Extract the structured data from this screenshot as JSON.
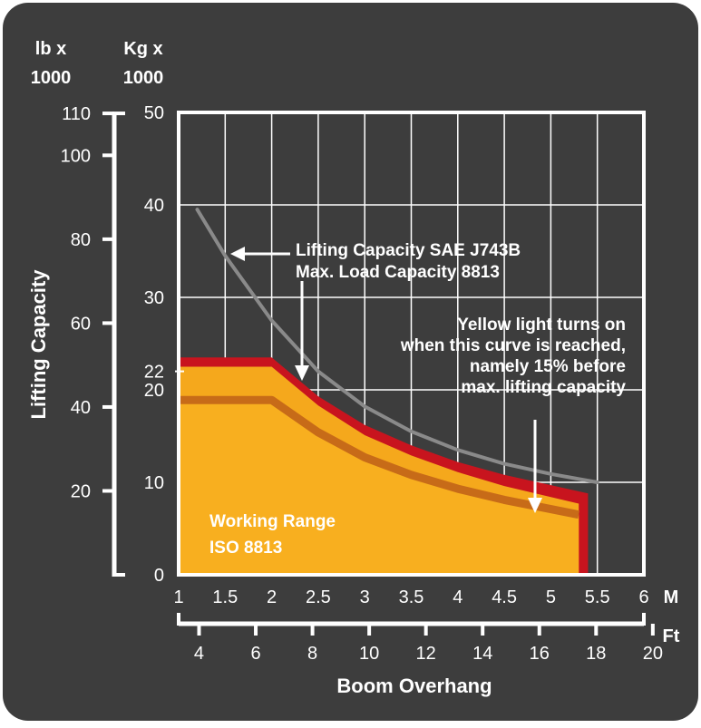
{
  "chart_data": {
    "type": "area",
    "units": {
      "lb_header": [
        "lb x",
        "1000"
      ],
      "kg_header": [
        "Kg x",
        "1000"
      ],
      "m_unit": "M",
      "ft_unit": "Ft"
    },
    "ylabel": "Lifting Capacity",
    "xlabel": "Boom Overhang",
    "y_kg_ticks": [
      "0",
      "10",
      "20",
      "22",
      "30",
      "40",
      "50"
    ],
    "y_lb_ticks": [
      "20",
      "40",
      "60",
      "80",
      "100",
      "110"
    ],
    "x_m_ticks": [
      "1",
      "1.5",
      "2",
      "2.5",
      "3",
      "3.5",
      "4",
      "4.5",
      "5",
      "5.5",
      "6"
    ],
    "x_ft_ticks": [
      "4",
      "6",
      "8",
      "10",
      "12",
      "14",
      "16",
      "18",
      "20"
    ],
    "xlim_m": [
      1,
      6
    ],
    "ylim_kg": [
      0,
      50
    ],
    "grid": true,
    "series": [
      {
        "name": "Lifting Capacity SAE J743B",
        "color": "#8a8a8a",
        "x": [
          1.2,
          1.5,
          2.0,
          2.5,
          3.0,
          3.5,
          4.0,
          4.5,
          5.0,
          5.5
        ],
        "y": [
          39.5,
          34.5,
          27.5,
          22.0,
          18.2,
          15.5,
          13.5,
          12.0,
          10.9,
          10.0
        ]
      },
      {
        "name": "Max. Load Capacity 8813",
        "color": "#c8141e",
        "x": [
          1.0,
          2.0,
          2.5,
          3.0,
          3.5,
          4.0,
          4.5,
          5.0,
          5.4
        ],
        "y": [
          23.5,
          23.5,
          19.3,
          16.2,
          14.0,
          12.2,
          10.8,
          9.7,
          8.8
        ]
      },
      {
        "name": "Working Range ISO 8813",
        "color": "#f5a81c",
        "x": [
          1.0,
          2.0,
          2.5,
          3.0,
          3.5,
          4.0,
          4.5,
          5.0,
          5.3
        ],
        "y": [
          22.5,
          22.5,
          18.3,
          15.1,
          12.9,
          11.1,
          9.6,
          8.4,
          7.7
        ]
      },
      {
        "name": "Yellow light threshold",
        "color": "#c76b18",
        "x": [
          1.0,
          2.0,
          2.5,
          3.0,
          3.5,
          4.0,
          4.5,
          5.0,
          5.3
        ],
        "y": [
          18.9,
          18.9,
          15.4,
          12.7,
          10.8,
          9.3,
          8.1,
          7.1,
          6.5
        ]
      }
    ],
    "annotations": {
      "sae": [
        "Lifting Capacity SAE J743B",
        "Max. Load Capacity 8813"
      ],
      "yellow": [
        "Yellow light turns on",
        "when this curve is reached,",
        "namely 15% before",
        "max. lifting capacity"
      ],
      "working": [
        "Working Range",
        "ISO 8813"
      ]
    }
  },
  "colors": {
    "background": "#3d3d3d",
    "frame": "#ffffff",
    "outer": "#ffffff"
  }
}
